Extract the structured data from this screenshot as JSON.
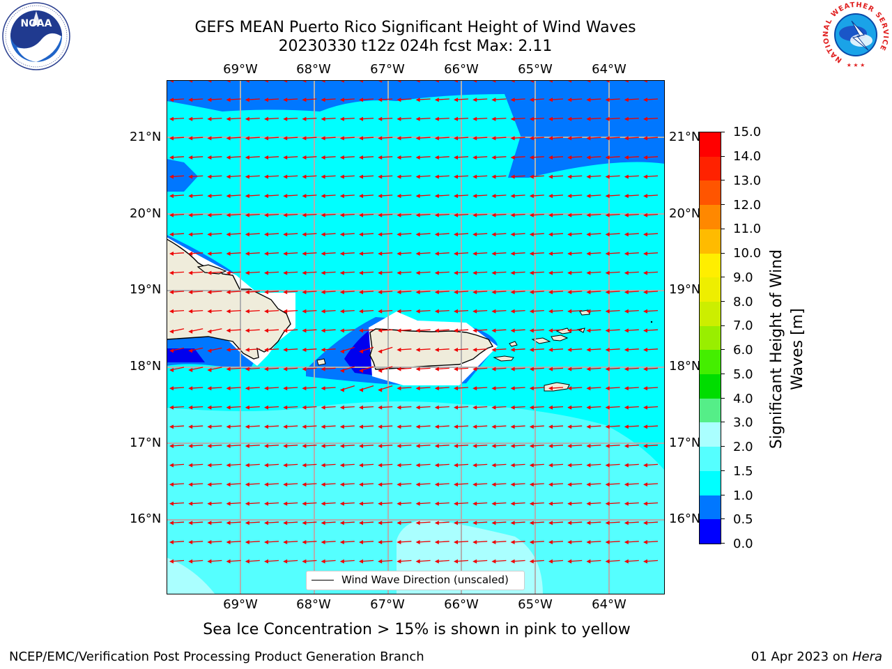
{
  "header": {
    "title_line1": "GEFS MEAN Puerto Rico Significant Height of Wind Waves",
    "title_line2": "20230330 t12z 024h fcst   Max: 2.11"
  },
  "logos": {
    "left": {
      "icon": "noaa-logo",
      "text": "NOAA",
      "ring_text": "NATIONAL OCEANIC AND ATMOSPHERIC ADMINISTRATION · U.S. DEPARTMENT OF COMMERCE"
    },
    "right": {
      "icon": "nws-logo",
      "ring_text": "NATIONAL WEATHER SERVICE"
    }
  },
  "map": {
    "lon_labels": [
      "69°W",
      "68°W",
      "67°W",
      "66°W",
      "65°W",
      "64°W"
    ],
    "lat_labels": [
      "21°N",
      "20°N",
      "19°N",
      "18°N",
      "17°N",
      "16°N"
    ],
    "legend_label": "Wind Wave Direction (unscaled)",
    "colors": {
      "land": "#efecdb",
      "deep_blue": "#0000ee",
      "blue": "#0077ff",
      "cyan": "#00ffff",
      "light_cyan": "#55ffff",
      "pale_cyan": "#aaffff",
      "arrow": "#ee0000",
      "grid": "#b0b0b0"
    }
  },
  "colorbar": {
    "title": "Significant Height of Wind Waves [m]",
    "ticks": [
      "0.0",
      "0.5",
      "1.0",
      "1.5",
      "2.0",
      "3.0",
      "4.0",
      "5.0",
      "6.0",
      "7.0",
      "8.0",
      "9.0",
      "10.0",
      "11.0",
      "12.0",
      "13.0",
      "14.0",
      "15.0"
    ],
    "colors": [
      "#0000ff",
      "#0077ff",
      "#00ffff",
      "#55ffff",
      "#aaffff",
      "#55ee88",
      "#00dd00",
      "#44ee00",
      "#99ee00",
      "#ccee00",
      "#eeee00",
      "#ffee00",
      "#ffbb00",
      "#ff8800",
      "#ff5500",
      "#ff2200",
      "#ff0000"
    ]
  },
  "caption": "Sea Ice Concentration > 15% is shown in pink to yellow",
  "footer": {
    "left": "NCEP/EMC/Verification Post Processing Product Generation Branch",
    "date": "01 Apr 2023 on ",
    "machine": "Hera"
  }
}
